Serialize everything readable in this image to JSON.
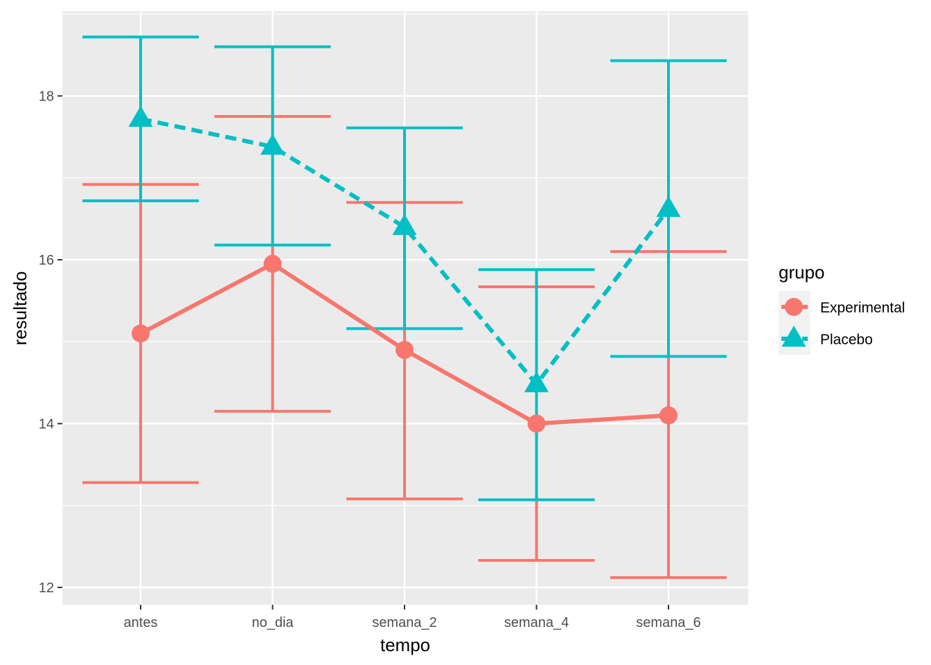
{
  "chart_data": {
    "type": "line",
    "title": "",
    "xlabel": "tempo",
    "ylabel": "resultado",
    "categories": [
      "antes",
      "no_dia",
      "semana_2",
      "semana_4",
      "semana_6"
    ],
    "ylim": [
      11.95,
      19.0
    ],
    "yticks": [
      12,
      14,
      16,
      18
    ],
    "ytick_labels": [
      "12",
      "14",
      "16",
      "18"
    ],
    "grid": true,
    "error_bars": true,
    "legend": {
      "title": "grupo",
      "position": "right"
    },
    "series": [
      {
        "name": "Experimental",
        "color": "#F8766D",
        "marker": "circle",
        "line_style": "solid",
        "values": [
          15.1,
          15.95,
          14.9,
          14.0,
          14.1
        ],
        "lower": [
          13.28,
          14.15,
          13.08,
          12.33,
          12.12
        ],
        "upper": [
          16.92,
          17.75,
          16.7,
          15.67,
          16.1
        ]
      },
      {
        "name": "Placebo",
        "color": "#00BFC4",
        "marker": "triangle",
        "line_style": "dashed",
        "values": [
          17.72,
          17.38,
          16.4,
          14.48,
          16.62
        ],
        "lower": [
          16.72,
          16.18,
          15.16,
          13.07,
          14.82
        ],
        "upper": [
          18.72,
          18.6,
          17.61,
          15.88,
          18.43
        ]
      }
    ]
  }
}
